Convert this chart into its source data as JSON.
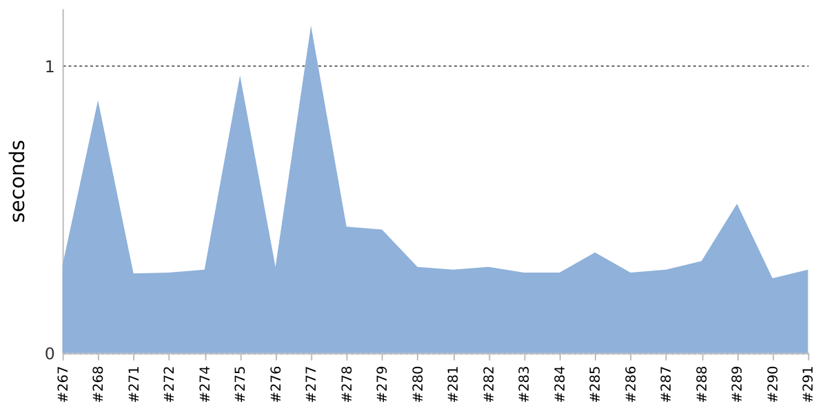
{
  "chart_data": {
    "type": "area",
    "ylabel": "seconds",
    "categories": [
      "#267",
      "#268",
      "#271",
      "#272",
      "#274",
      "#275",
      "#276",
      "#277",
      "#278",
      "#279",
      "#280",
      "#281",
      "#282",
      "#283",
      "#284",
      "#285",
      "#286",
      "#287",
      "#288",
      "#289",
      "#290",
      "#291"
    ],
    "series": [
      {
        "color": "#8fb1da",
        "values": [
          0.305,
          0.88,
          0.277,
          0.28,
          0.29,
          0.967,
          0.3,
          1.14,
          0.44,
          0.43,
          0.3,
          0.29,
          0.3,
          0.28,
          0.28,
          0.35,
          0.28,
          0.29,
          0.32,
          0.52,
          0.26,
          0.29
        ]
      }
    ],
    "ylim": [
      0,
      1.2
    ],
    "yticks": [
      0,
      1
    ],
    "grid": "y"
  }
}
